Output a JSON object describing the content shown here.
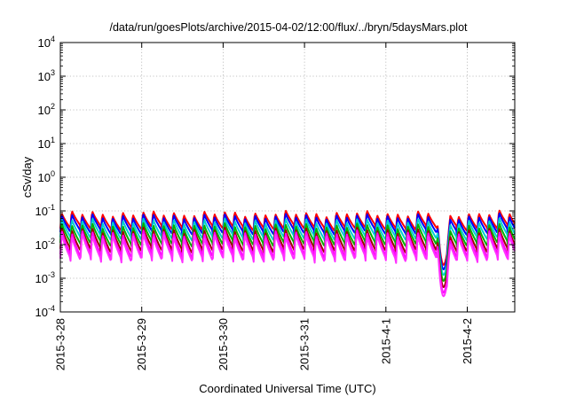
{
  "chart_data": {
    "type": "line",
    "title": "/data/run/goesPlots/archive/2015-04-02/12:00/flux/../bryn/5daysMars.plot",
    "xlabel": "Coordinated Universal Time (UTC)",
    "ylabel": "cSv/day",
    "yscale": "log",
    "ylim": [
      0.0001,
      10000
    ],
    "y_ticks": [
      {
        "base": "10",
        "exp": "-4"
      },
      {
        "base": "10",
        "exp": "-3"
      },
      {
        "base": "10",
        "exp": "-2"
      },
      {
        "base": "10",
        "exp": "-1"
      },
      {
        "base": "10",
        "exp": "0"
      },
      {
        "base": "10",
        "exp": "1"
      },
      {
        "base": "10",
        "exp": "2"
      },
      {
        "base": "10",
        "exp": "3"
      },
      {
        "base": "10",
        "exp": "4"
      }
    ],
    "x_ticks": [
      "2015-3-28",
      "2015-3-29",
      "2015-3-30",
      "2015-3-31",
      "2015-4-1",
      "2015-4-2"
    ],
    "xlim": [
      "2015-03-28 00:00",
      "2015-04-02 14:00"
    ],
    "grid": true,
    "legend": "none",
    "pattern": {
      "kind": "periodic sawtooth",
      "period_hours": 3,
      "dip_window": [
        "2015-04-01 15:00",
        "2015-04-01 19:00"
      ],
      "dip_min_value": 0.001
    },
    "series": [
      {
        "color": "#ff0000",
        "peak": 0.09,
        "trough": 0.03
      },
      {
        "color": "#0000ff",
        "peak": 0.075,
        "trough": 0.022
      },
      {
        "color": "#00d0d0",
        "peak": 0.055,
        "trough": 0.015
      },
      {
        "color": "#00b000",
        "peak": 0.04,
        "trough": 0.01
      },
      {
        "color": "#a00000",
        "peak": 0.03,
        "trough": 0.0065
      },
      {
        "color": "#ff00ff",
        "peak": 0.025,
        "trough": 0.0045
      },
      {
        "color": "#ff30ff",
        "peak": 0.02,
        "trough": 0.0035
      }
    ]
  }
}
